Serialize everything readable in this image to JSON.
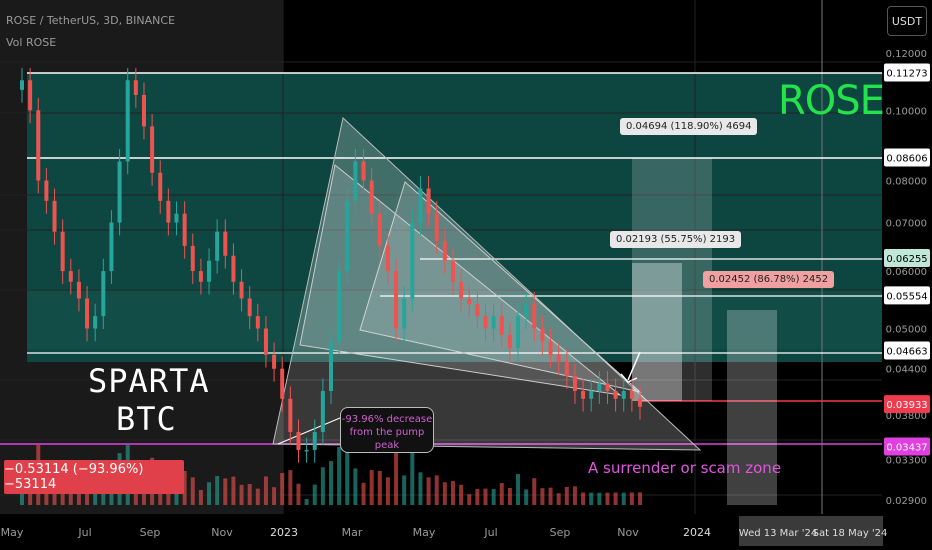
{
  "header": {
    "title": "ROSE / TetherUS, 3D, BINANCE",
    "sub": "Vol ROSE"
  },
  "currency_button": "USDT",
  "loss_label": "−0.53114 (−93.96%) −53114",
  "watermark": [
    "SPARTA",
    "BTC"
  ],
  "ticker_label": "ROSE",
  "callout": "-93.96% decrease from the pump peak",
  "zone_label": "A surrender or scam zone",
  "measures": [
    "0.04694 (118.90%) 4694",
    "0.02193 (55.75%) 2193",
    "0.02452 (86.78%) 2452"
  ],
  "colors": {
    "up": "#26a69a",
    "down": "#ef5350",
    "accent": "#22e34a",
    "magenta": "#e040e0",
    "teal_zone": "#0e4a44"
  },
  "chart_data": {
    "type": "candlestick",
    "symbol": "ROSE / TetherUS",
    "interval": "3D",
    "exchange": "BINANCE",
    "ylim": [
      0.029,
      0.125
    ],
    "scale": "log",
    "y_ticks": [
      "0.12000",
      "0.11273",
      "0.10000",
      "0.08606",
      "0.08000",
      "0.07000",
      "0.06255",
      "0.06000",
      "0.05554",
      "0.05000",
      "0.04663",
      "0.04400",
      "0.03933",
      "0.03800",
      "0.03437",
      "0.03300",
      "0.02900"
    ],
    "x_ticks": [
      "May",
      "Jul",
      "Sep",
      "Nov",
      "2023",
      "Mar",
      "May",
      "Jul",
      "Sep",
      "Nov",
      "2024"
    ],
    "date_badges": [
      "Wed 13 Mar '24",
      "Sat 18 May '24"
    ],
    "price_tags": [
      {
        "value": "0.11273",
        "color": "#ffffff"
      },
      {
        "value": "0.08606",
        "color": "#ffffff"
      },
      {
        "value": "0.06255",
        "color": "#bfe8d8"
      },
      {
        "value": "0.05554",
        "color": "#ffffff"
      },
      {
        "value": "0.04663",
        "color": "#ffffff"
      },
      {
        "value": "0.03933",
        "color": "#ef3b4e"
      },
      {
        "value": "0.03437",
        "color": "#e040e0"
      }
    ],
    "closes": [
      0.11,
      0.1,
      0.08,
      0.075,
      0.068,
      0.06,
      0.058,
      0.055,
      0.05,
      0.052,
      0.06,
      0.07,
      0.085,
      0.11,
      0.105,
      0.095,
      0.082,
      0.075,
      0.07,
      0.072,
      0.065,
      0.06,
      0.058,
      0.062,
      0.068,
      0.063,
      0.058,
      0.055,
      0.052,
      0.05,
      0.046,
      0.044,
      0.04,
      0.036,
      0.034,
      0.034,
      0.036,
      0.041,
      0.048,
      0.06,
      0.075,
      0.085,
      0.08,
      0.072,
      0.065,
      0.06,
      0.05,
      0.055,
      0.07,
      0.078,
      0.072,
      0.066,
      0.062,
      0.058,
      0.055,
      0.054,
      0.052,
      0.05,
      0.052,
      0.049,
      0.047,
      0.052,
      0.054,
      0.05,
      0.048,
      0.046,
      0.045,
      0.043,
      0.041,
      0.04,
      0.041,
      0.042,
      0.041,
      0.04,
      0.041,
      0.04,
      0.039
    ]
  }
}
